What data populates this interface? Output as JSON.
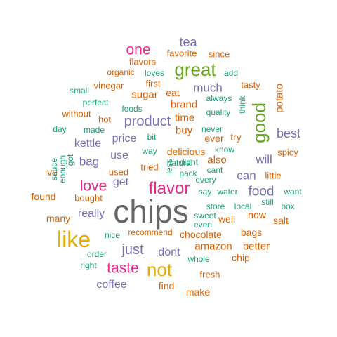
{
  "colors": {
    "teal": "#1b9e77",
    "orange": "#d95f02",
    "purple": "#7570b3",
    "magenta": "#e7298a",
    "green": "#66a61e",
    "gold": "#e6ab02",
    "gray": "#666666"
  },
  "words": [
    {
      "text": "chips",
      "color": "gray"
    },
    {
      "text": "like",
      "color": "gold"
    },
    {
      "text": "good",
      "color": "green"
    },
    {
      "text": "great",
      "color": "green"
    },
    {
      "text": "flavor",
      "color": "magenta"
    },
    {
      "text": "not",
      "color": "gold"
    },
    {
      "text": "taste",
      "color": "magenta"
    },
    {
      "text": "love",
      "color": "magenta"
    },
    {
      "text": "one",
      "color": "magenta"
    },
    {
      "text": "just",
      "color": "purple"
    },
    {
      "text": "product",
      "color": "purple"
    },
    {
      "text": "food",
      "color": "purple"
    },
    {
      "text": "tea",
      "color": "purple"
    },
    {
      "text": "best",
      "color": "purple"
    },
    {
      "text": "will",
      "color": "purple"
    },
    {
      "text": "can",
      "color": "purple"
    },
    {
      "text": "bag",
      "color": "purple"
    },
    {
      "text": "coffee",
      "color": "purple"
    },
    {
      "text": "much",
      "color": "purple"
    },
    {
      "text": "really",
      "color": "purple"
    },
    {
      "text": "price",
      "color": "purple"
    },
    {
      "text": "use",
      "color": "purple"
    },
    {
      "text": "get",
      "color": "purple"
    },
    {
      "text": "kettle",
      "color": "purple"
    },
    {
      "text": "dont",
      "color": "purple"
    },
    {
      "text": "potato",
      "color": "orange"
    },
    {
      "text": "amazon",
      "color": "orange"
    },
    {
      "text": "better",
      "color": "orange"
    },
    {
      "text": "chocolate",
      "color": "orange"
    },
    {
      "text": "bags",
      "color": "orange"
    },
    {
      "text": "also",
      "color": "orange"
    },
    {
      "text": "buy",
      "color": "orange"
    },
    {
      "text": "time",
      "color": "orange"
    },
    {
      "text": "brand",
      "color": "orange"
    },
    {
      "text": "sugar",
      "color": "orange"
    },
    {
      "text": "delicious",
      "color": "orange"
    },
    {
      "text": "eat",
      "color": "orange"
    },
    {
      "text": "well",
      "color": "orange"
    },
    {
      "text": "salt",
      "color": "orange"
    },
    {
      "text": "now",
      "color": "orange"
    },
    {
      "text": "spicy",
      "color": "orange"
    },
    {
      "text": "little",
      "color": "orange"
    },
    {
      "text": "tried",
      "color": "orange"
    },
    {
      "text": "used",
      "color": "orange"
    },
    {
      "text": "ive",
      "color": "orange"
    },
    {
      "text": "found",
      "color": "orange"
    },
    {
      "text": "many",
      "color": "orange"
    },
    {
      "text": "bought",
      "color": "orange"
    },
    {
      "text": "make",
      "color": "orange"
    },
    {
      "text": "find",
      "color": "orange"
    },
    {
      "text": "chip",
      "color": "orange"
    },
    {
      "text": "ever",
      "color": "orange"
    },
    {
      "text": "try",
      "color": "orange"
    },
    {
      "text": "hot",
      "color": "orange"
    },
    {
      "text": "first",
      "color": "orange"
    },
    {
      "text": "favorite",
      "color": "orange"
    },
    {
      "text": "flavors",
      "color": "orange"
    },
    {
      "text": "organic",
      "color": "orange"
    },
    {
      "text": "tasty",
      "color": "orange"
    },
    {
      "text": "since",
      "color": "orange"
    },
    {
      "text": "vinegar",
      "color": "orange"
    },
    {
      "text": "fresh",
      "color": "orange"
    },
    {
      "text": "recommend",
      "color": "orange"
    },
    {
      "text": "without",
      "color": "orange"
    },
    {
      "text": "loves",
      "color": "teal"
    },
    {
      "text": "add",
      "color": "teal"
    },
    {
      "text": "small",
      "color": "teal"
    },
    {
      "text": "perfect",
      "color": "teal"
    },
    {
      "text": "foods",
      "color": "teal"
    },
    {
      "text": "think",
      "color": "teal"
    },
    {
      "text": "always",
      "color": "teal"
    },
    {
      "text": "quality",
      "color": "teal"
    },
    {
      "text": "day",
      "color": "teal"
    },
    {
      "text": "made",
      "color": "teal"
    },
    {
      "text": "bit",
      "color": "teal"
    },
    {
      "text": "never",
      "color": "teal"
    },
    {
      "text": "way",
      "color": "teal"
    },
    {
      "text": "natural",
      "color": "teal"
    },
    {
      "text": "know",
      "color": "teal"
    },
    {
      "text": "didnt",
      "color": "teal"
    },
    {
      "text": "less",
      "color": "teal"
    },
    {
      "text": "pack",
      "color": "teal"
    },
    {
      "text": "cant",
      "color": "teal"
    },
    {
      "text": "every",
      "color": "teal"
    },
    {
      "text": "say",
      "color": "teal"
    },
    {
      "text": "water",
      "color": "teal"
    },
    {
      "text": "want",
      "color": "teal"
    },
    {
      "text": "sauce",
      "color": "teal"
    },
    {
      "text": "enough",
      "color": "teal"
    },
    {
      "text": "got",
      "color": "teal"
    },
    {
      "text": "sweet",
      "color": "teal"
    },
    {
      "text": "store",
      "color": "teal"
    },
    {
      "text": "local",
      "color": "teal"
    },
    {
      "text": "still",
      "color": "teal"
    },
    {
      "text": "box",
      "color": "teal"
    },
    {
      "text": "even",
      "color": "teal"
    },
    {
      "text": "nice",
      "color": "teal"
    },
    {
      "text": "order",
      "color": "teal"
    },
    {
      "text": "whole",
      "color": "teal"
    },
    {
      "text": "right",
      "color": "teal"
    }
  ]
}
